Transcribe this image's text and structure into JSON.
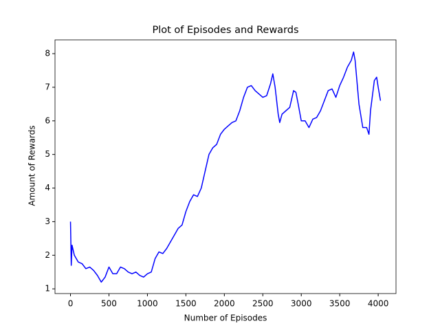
{
  "chart_data": {
    "type": "line",
    "title": "Plot of Episodes and Rewards",
    "x_label": "Number of Episodes",
    "y_label": "Amount of Rewards",
    "color": "#0000ff",
    "x": [
      0,
      10,
      20,
      50,
      100,
      150,
      200,
      250,
      300,
      350,
      400,
      450,
      500,
      550,
      600,
      650,
      700,
      750,
      800,
      850,
      900,
      950,
      1000,
      1050,
      1100,
      1150,
      1200,
      1250,
      1300,
      1350,
      1400,
      1450,
      1500,
      1550,
      1600,
      1650,
      1700,
      1750,
      1800,
      1850,
      1900,
      1950,
      2000,
      2050,
      2100,
      2150,
      2200,
      2250,
      2300,
      2350,
      2400,
      2450,
      2500,
      2550,
      2600,
      2630,
      2660,
      2700,
      2720,
      2750,
      2800,
      2850,
      2900,
      2930,
      2960,
      3000,
      3050,
      3100,
      3150,
      3200,
      3250,
      3300,
      3350,
      3400,
      3450,
      3500,
      3550,
      3600,
      3650,
      3680,
      3700,
      3750,
      3800,
      3850,
      3880,
      3900,
      3950,
      3980,
      4000,
      4030
    ],
    "values": [
      3.0,
      1.7,
      2.3,
      2.0,
      1.8,
      1.75,
      1.6,
      1.65,
      1.55,
      1.4,
      1.2,
      1.35,
      1.65,
      1.45,
      1.45,
      1.65,
      1.6,
      1.5,
      1.45,
      1.5,
      1.4,
      1.35,
      1.45,
      1.5,
      1.9,
      2.1,
      2.05,
      2.2,
      2.4,
      2.6,
      2.8,
      2.9,
      3.3,
      3.6,
      3.8,
      3.75,
      4.0,
      4.5,
      5.0,
      5.2,
      5.3,
      5.6,
      5.75,
      5.85,
      5.95,
      6.0,
      6.3,
      6.7,
      7.0,
      7.05,
      6.9,
      6.8,
      6.7,
      6.75,
      7.1,
      7.4,
      7.0,
      6.2,
      5.95,
      6.2,
      6.3,
      6.4,
      6.9,
      6.85,
      6.5,
      6.0,
      6.0,
      5.8,
      6.05,
      6.1,
      6.3,
      6.6,
      6.9,
      6.95,
      6.7,
      7.05,
      7.3,
      7.6,
      7.8,
      8.05,
      7.8,
      6.5,
      5.8,
      5.8,
      5.6,
      6.3,
      7.2,
      7.3,
      7.0,
      6.6
    ],
    "xlim": [
      -201.5,
      4231.5
    ],
    "ylim": [
      0.86,
      8.41
    ],
    "xticks": [
      0,
      500,
      1000,
      1500,
      2000,
      2500,
      3000,
      3500,
      4000
    ],
    "yticks": [
      1,
      2,
      3,
      4,
      5,
      6,
      7,
      8
    ],
    "grid": false
  }
}
